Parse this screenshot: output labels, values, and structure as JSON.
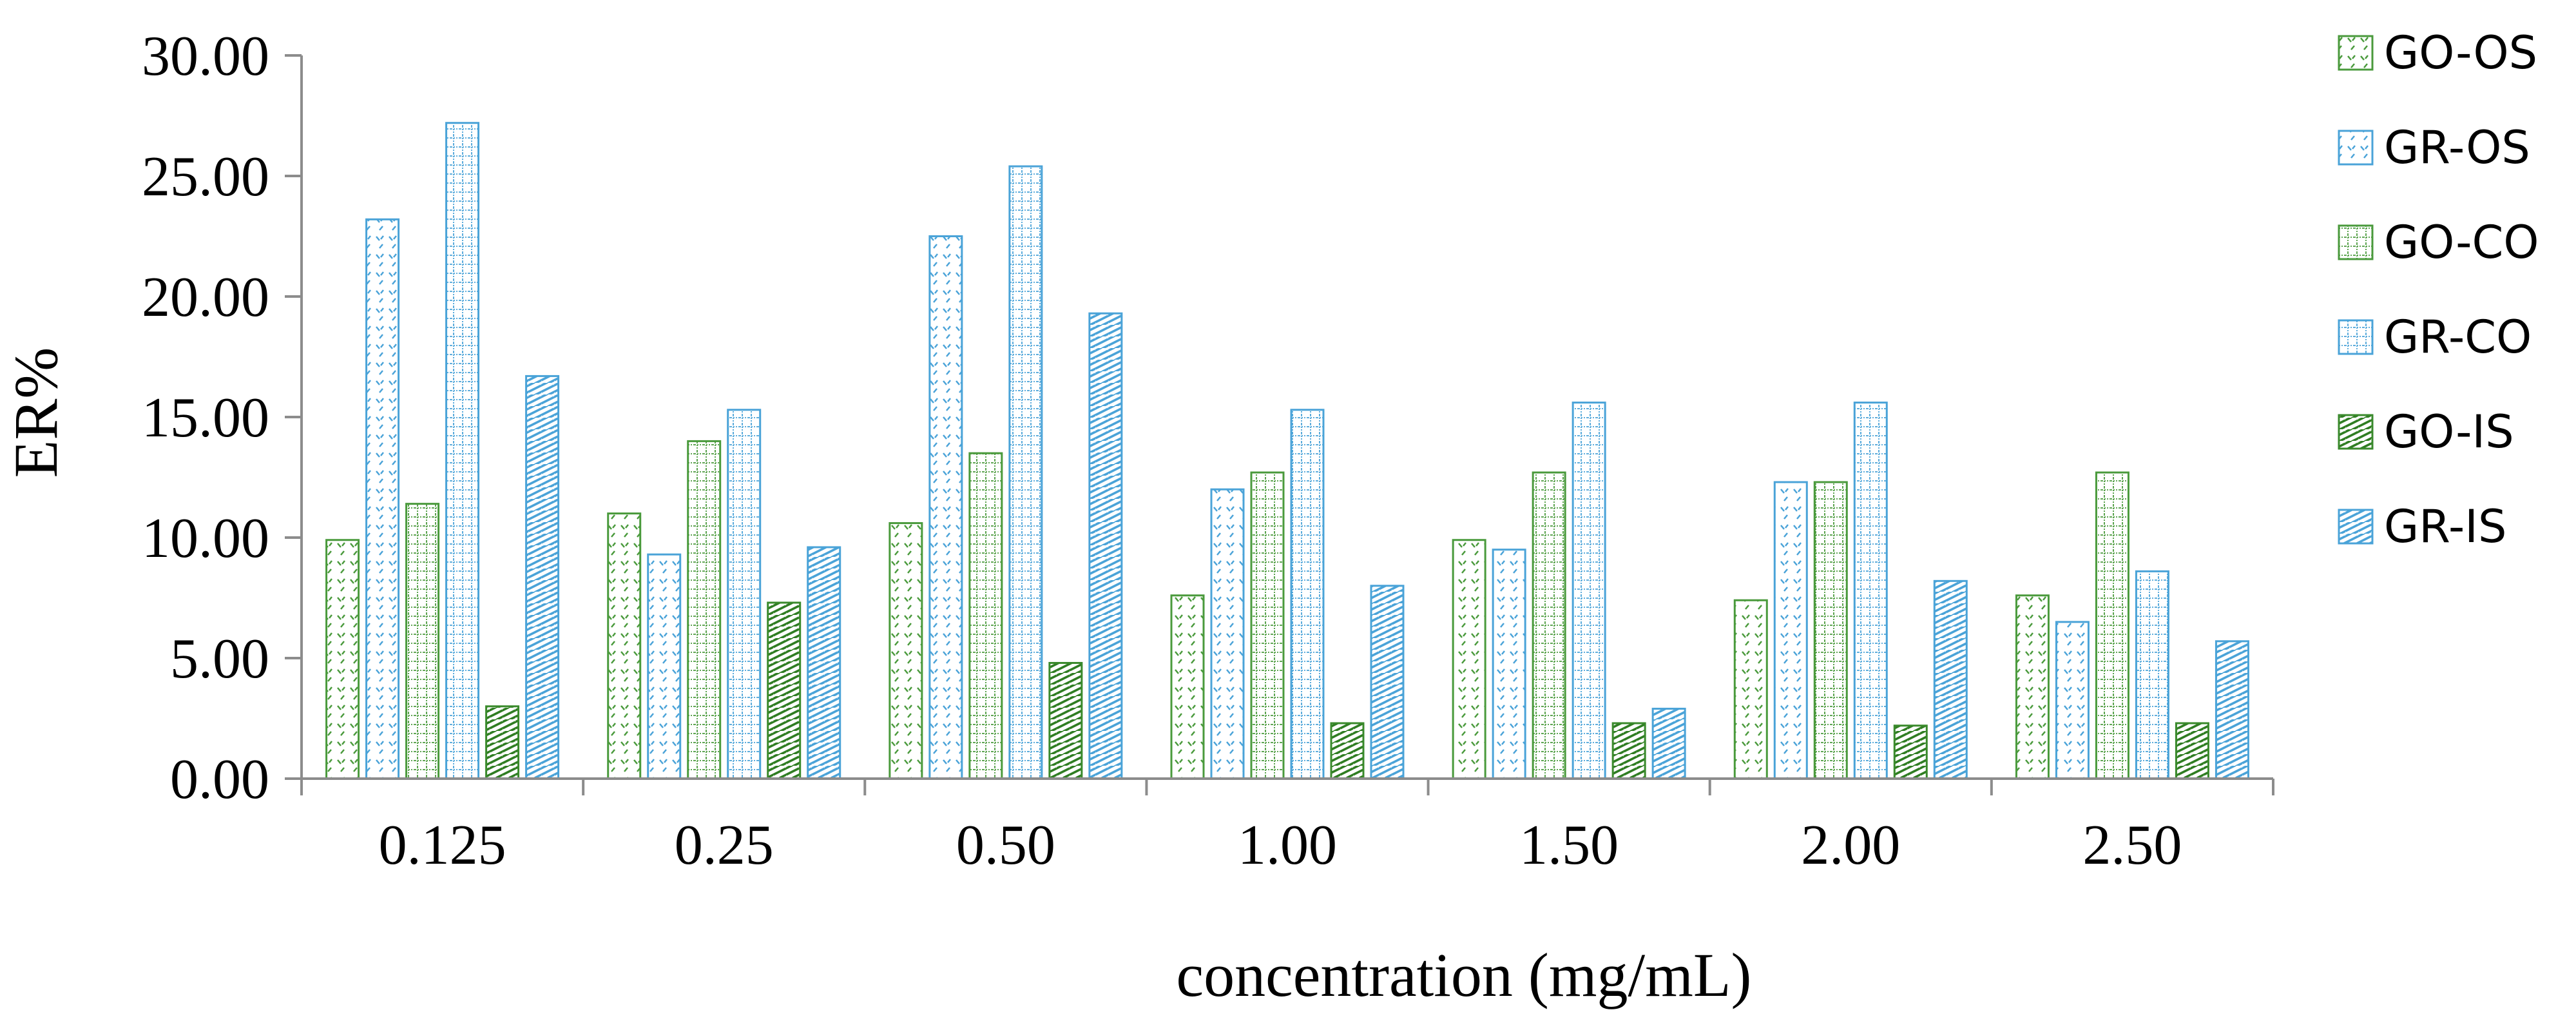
{
  "chart_data": {
    "type": "bar",
    "title": "",
    "xlabel": "concentration (mg/mL)",
    "ylabel": "ER%",
    "ylim": [
      0,
      30
    ],
    "yticks": [
      "0.00",
      "5.00",
      "10.00",
      "15.00",
      "20.00",
      "25.00",
      "30.00"
    ],
    "categories": [
      "0.125",
      "0.25",
      "0.50",
      "1.00",
      "1.50",
      "2.00",
      "2.50"
    ],
    "grid": false,
    "legend_position": "right",
    "series": [
      {
        "name": "GO-OS",
        "color": "#4a9a3c",
        "pattern": "dash-green",
        "values": [
          9.9,
          11.0,
          10.6,
          7.6,
          9.9,
          7.4,
          7.6
        ]
      },
      {
        "name": "GR-OS",
        "color": "#4aa3d8",
        "pattern": "dash-blue",
        "values": [
          23.2,
          9.3,
          22.5,
          12.0,
          9.5,
          12.3,
          6.5
        ]
      },
      {
        "name": "GO-CO",
        "color": "#4a9a3c",
        "pattern": "dot-green",
        "values": [
          11.4,
          14.0,
          13.5,
          12.7,
          12.7,
          12.3,
          12.7
        ]
      },
      {
        "name": "GR-CO",
        "color": "#4aa3d8",
        "pattern": "dot-blue",
        "values": [
          27.2,
          15.3,
          25.4,
          15.3,
          15.6,
          15.6,
          8.6
        ]
      },
      {
        "name": "GO-IS",
        "color": "#3a8a2c",
        "pattern": "hatch-green",
        "values": [
          3.0,
          7.3,
          4.8,
          2.3,
          2.3,
          2.2,
          2.3
        ]
      },
      {
        "name": "GR-IS",
        "color": "#4aa3d8",
        "pattern": "hatch-blue",
        "values": [
          16.7,
          9.6,
          19.3,
          8.0,
          2.9,
          8.2,
          5.7
        ]
      }
    ]
  }
}
